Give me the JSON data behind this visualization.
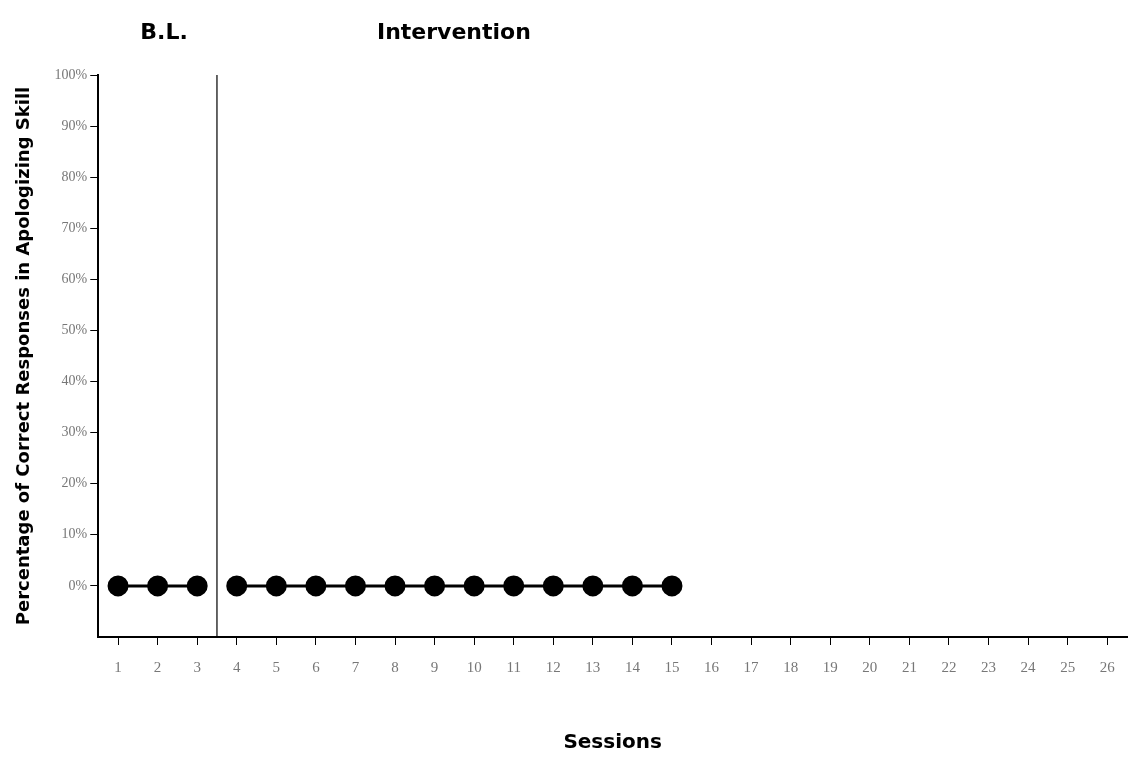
{
  "chart_data": {
    "type": "line",
    "xlabel": "Sessions",
    "ylabel": "Percentage of Correct Responses in Apologizing Skill",
    "annotations": [
      "B.L.",
      "Intervention"
    ],
    "xlim": [
      0.5,
      26.5
    ],
    "xticks": [
      1,
      2,
      3,
      4,
      5,
      6,
      7,
      8,
      9,
      10,
      11,
      12,
      13,
      14,
      15,
      16,
      17,
      18,
      19,
      20,
      21,
      22,
      23,
      24,
      25,
      26
    ],
    "ylim": [
      -10,
      100
    ],
    "yticks": [
      {
        "value": 0,
        "label": "0%"
      },
      {
        "value": 10,
        "label": "10%"
      },
      {
        "value": 20,
        "label": "20%"
      },
      {
        "value": 30,
        "label": "30%"
      },
      {
        "value": 40,
        "label": "40%"
      },
      {
        "value": 50,
        "label": "50%"
      },
      {
        "value": 60,
        "label": "60%"
      },
      {
        "value": 70,
        "label": "70%"
      },
      {
        "value": 80,
        "label": "80%"
      },
      {
        "value": 90,
        "label": "90%"
      },
      {
        "value": 100,
        "label": "100%"
      }
    ],
    "series": [
      {
        "color": "#000000",
        "x": [
          1,
          2,
          3
        ],
        "values": [
          0,
          0,
          0
        ]
      },
      {
        "color": "#000000",
        "x": [
          4,
          5,
          6,
          7,
          8,
          9,
          10,
          11,
          12,
          13,
          14,
          15
        ],
        "values": [
          0,
          0,
          0,
          0,
          0,
          0,
          0,
          0,
          0,
          0,
          0,
          0
        ]
      }
    ],
    "ref_lines": [
      {
        "axis": "x",
        "value": 3.5,
        "color": "#000000"
      }
    ],
    "marker": "circle",
    "line_style": "solid",
    "grid": false,
    "legend": false
  }
}
